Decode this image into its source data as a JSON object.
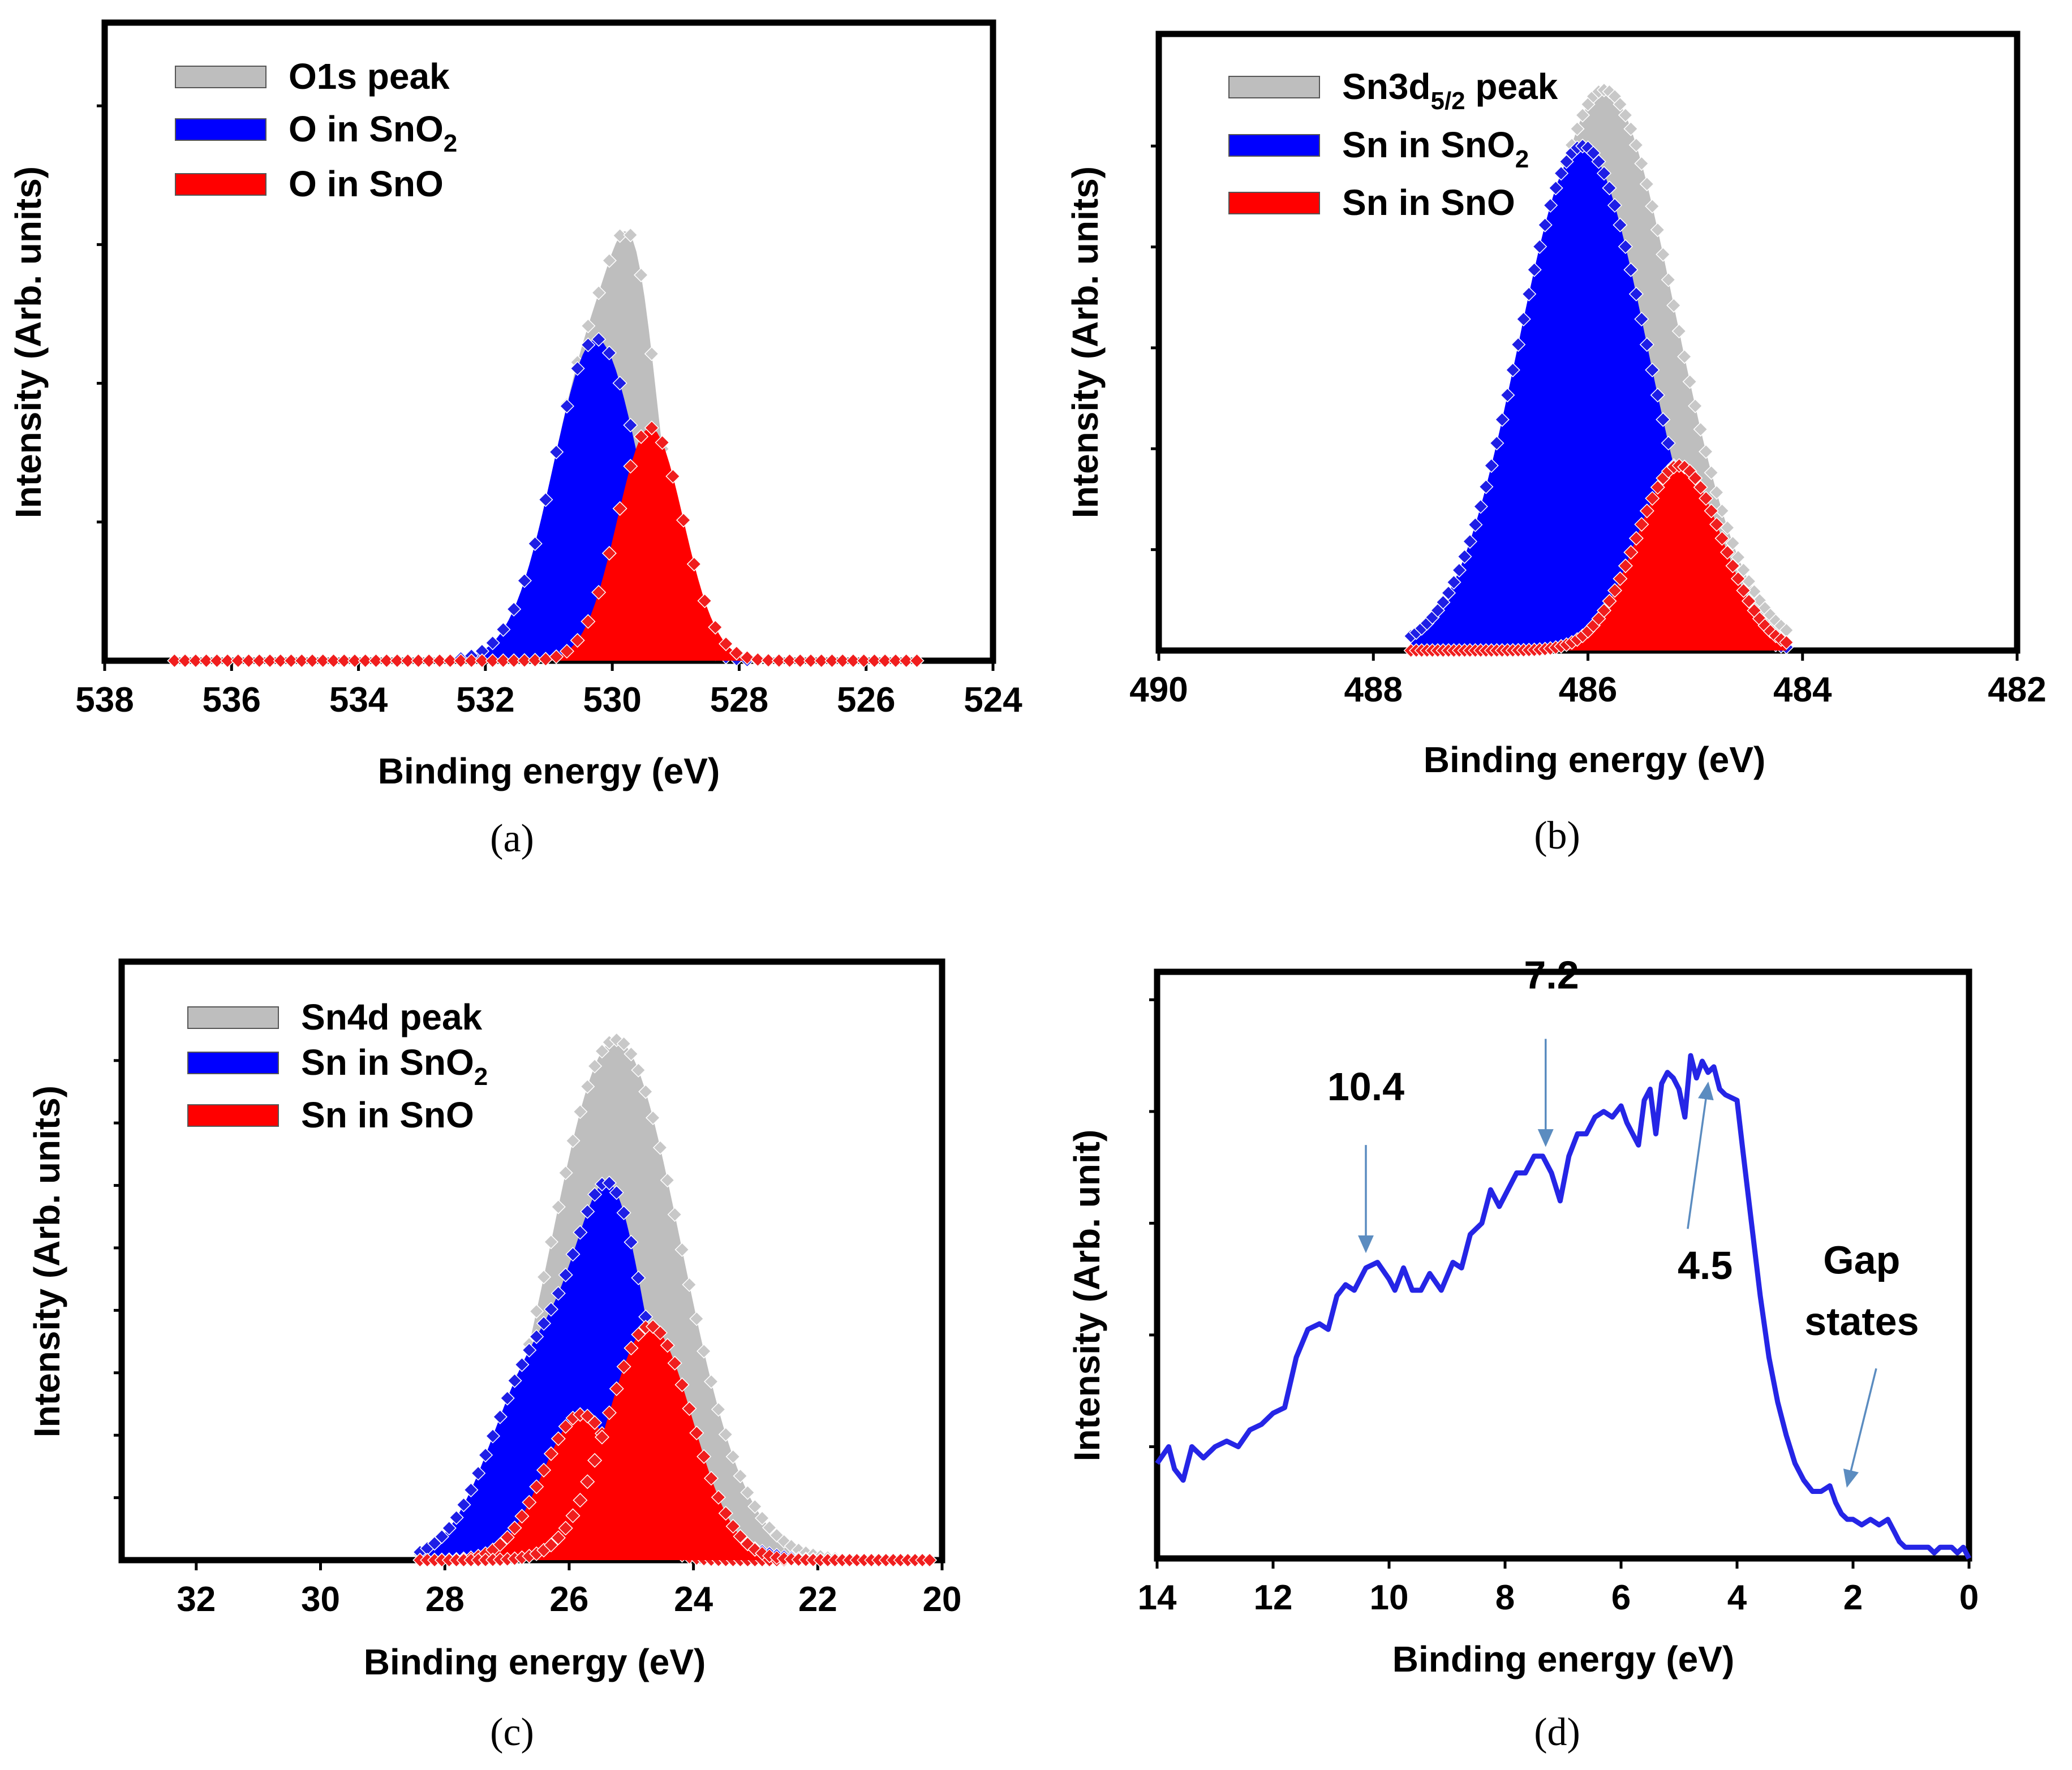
{
  "colors": {
    "total": "#BEBEBE",
    "sno2": "#0000FF",
    "sno": "#FF0000",
    "marker_total": "#C8C8C8",
    "marker_sno2": "#1E1EE6",
    "marker_sno": "#F01E1E",
    "vb_line": "#2525E6",
    "arrow": "#5B8CC0"
  },
  "chart_data": [
    {
      "id": "a",
      "type": "area",
      "caption": "(a)",
      "xlabel": "Binding energy (eV)",
      "ylabel": "Intensity (Arb. units)",
      "xlim": [
        538,
        524
      ],
      "ylim": [
        0,
        1.15
      ],
      "xticks": [
        538,
        536,
        534,
        532,
        530,
        528,
        526,
        524
      ],
      "xtick_labels": [
        "538",
        "536",
        "534",
        "532",
        "530",
        "528",
        "526",
        "524"
      ],
      "yticks": [
        0.25,
        0.5,
        0.75,
        1.0
      ],
      "x_range": [
        536.9,
        525.2
      ],
      "legend_position": "top-left",
      "legend": [
        {
          "label": "O1s peak",
          "sub": "",
          "color_key": "total"
        },
        {
          "label": "O in SnO",
          "sub": "2",
          "color_key": "sno2"
        },
        {
          "label": "O in SnO",
          "sub": "",
          "color_key": "sno"
        }
      ],
      "series": [
        {
          "name": "O1s peak",
          "color_key": "total",
          "components": [
            [
              529.6,
              0.36,
              0.36
            ],
            [
              530.25,
              0.58,
              0.68
            ]
          ]
        },
        {
          "name": "O in SnO2",
          "color_key": "sno2",
          "components": [
            [
              530.25,
              0.58,
              0.68
            ]
          ]
        },
        {
          "name": "O in SnO",
          "color_key": "sno",
          "components": [
            [
              529.4,
              0.42,
              0.52
            ]
          ]
        }
      ]
    },
    {
      "id": "b",
      "type": "area",
      "caption": "(b)",
      "xlabel": "Binding energy (eV)",
      "ylabel": "Intensity (Arb. units)",
      "xlim": [
        490,
        482
      ],
      "ylim": [
        0,
        1.1
      ],
      "xticks": [
        490,
        488,
        486,
        484,
        482
      ],
      "xtick_labels": [
        "490",
        "488",
        "486",
        "484",
        "482"
      ],
      "yticks": [
        0.18,
        0.36,
        0.54,
        0.72,
        0.9
      ],
      "x_range": [
        487.65,
        484.15
      ],
      "legend_position": "top-left",
      "legend": [
        {
          "label": "Sn3d",
          "sub": "5/2",
          "suffix": " peak",
          "color_key": "total"
        },
        {
          "label": "Sn in SnO",
          "sub": "2",
          "suffix": "",
          "color_key": "sno2"
        },
        {
          "label": "Sn in SnO",
          "sub": "",
          "suffix": "",
          "color_key": "sno"
        }
      ],
      "series": [
        {
          "name": "Sn3d5/2 peak",
          "color_key": "total",
          "components": [
            [
              485.85,
              1.0,
              0.66
            ]
          ]
        },
        {
          "name": "Sn in SnO2",
          "color_key": "sno2",
          "components": [
            [
              486.05,
              0.9,
              0.6
            ]
          ]
        },
        {
          "name": "Sn in SnO",
          "color_key": "sno",
          "components": [
            [
              485.15,
              0.33,
              0.4
            ]
          ]
        }
      ]
    },
    {
      "id": "c",
      "type": "area",
      "caption": "(c)",
      "xlabel": "Binding energy (eV)",
      "ylabel": "Intensity (Arb. units)",
      "xlim": [
        33.2,
        20
      ],
      "ylim": [
        0,
        1.15
      ],
      "xticks": [
        32,
        30,
        28,
        26,
        24,
        22,
        20
      ],
      "xtick_labels": [
        "32",
        "30",
        "28",
        "26",
        "24",
        "22",
        "20"
      ],
      "yticks": [
        0.12,
        0.24,
        0.36,
        0.48,
        0.6,
        0.72,
        0.84,
        0.96
      ],
      "x_range": [
        28.4,
        20.2
      ],
      "legend_position": "top-left",
      "legend": [
        {
          "label": "Sn4d peak",
          "sub": "",
          "color_key": "total"
        },
        {
          "label": "Sn in SnO",
          "sub": "2",
          "color_key": "sno2"
        },
        {
          "label": "Sn in SnO",
          "sub": "",
          "color_key": "sno"
        }
      ],
      "series": [
        {
          "name": "Sn4d peak",
          "color_key": "total",
          "components": [
            [
              25.25,
              1.0,
              1.05
            ]
          ]
        },
        {
          "name": "Sn in SnO2",
          "color_key": "sno2",
          "components": [
            [
              26.5,
              0.38,
              0.75
            ],
            [
              25.3,
              0.56,
              0.55
            ],
            [
              24.4,
              0.1,
              0.8
            ]
          ]
        },
        {
          "name": "Sn in SnO (1)",
          "color_key": "sno",
          "components": [
            [
              25.8,
              0.28,
              0.62
            ]
          ]
        },
        {
          "name": "Sn in SnO (2)",
          "color_key": "sno",
          "components": [
            [
              24.7,
              0.45,
              0.68
            ]
          ]
        }
      ]
    },
    {
      "id": "d",
      "type": "line",
      "caption": "(d)",
      "xlabel": "Binding energy (eV)",
      "ylabel": "Intensity (Arb. unit)",
      "xlim": [
        14,
        0
      ],
      "ylim": [
        0,
        1.05
      ],
      "xticks": [
        14,
        12,
        10,
        8,
        6,
        4,
        2,
        0
      ],
      "xtick_labels": [
        "14",
        "12",
        "10",
        "8",
        "6",
        "4",
        "2",
        "0"
      ],
      "yticks": [
        0.2,
        0.4,
        0.6,
        0.8,
        1.0
      ],
      "x": [
        14.0,
        13.8,
        13.7,
        13.55,
        13.4,
        13.2,
        13.0,
        12.8,
        12.6,
        12.4,
        12.2,
        12.0,
        11.8,
        11.6,
        11.4,
        11.2,
        11.05,
        10.9,
        10.75,
        10.6,
        10.4,
        10.2,
        10.0,
        9.9,
        9.75,
        9.6,
        9.45,
        9.3,
        9.1,
        8.9,
        8.75,
        8.6,
        8.4,
        8.25,
        8.1,
        7.95,
        7.8,
        7.65,
        7.5,
        7.35,
        7.2,
        7.05,
        6.9,
        6.75,
        6.6,
        6.45,
        6.3,
        6.15,
        6.0,
        5.9,
        5.8,
        5.7,
        5.6,
        5.5,
        5.4,
        5.3,
        5.2,
        5.1,
        5.0,
        4.9,
        4.8,
        4.7,
        4.6,
        4.5,
        4.4,
        4.3,
        4.2,
        4.0,
        3.9,
        3.75,
        3.6,
        3.45,
        3.3,
        3.15,
        3.0,
        2.85,
        2.7,
        2.55,
        2.4,
        2.3,
        2.2,
        2.1,
        2.0,
        1.85,
        1.7,
        1.55,
        1.4,
        1.3,
        1.2,
        1.1,
        1.0,
        0.9,
        0.8,
        0.7,
        0.6,
        0.5,
        0.4,
        0.3,
        0.2,
        0.1,
        0.0
      ],
      "values": [
        0.17,
        0.2,
        0.16,
        0.14,
        0.2,
        0.18,
        0.2,
        0.21,
        0.2,
        0.23,
        0.24,
        0.26,
        0.27,
        0.36,
        0.41,
        0.42,
        0.41,
        0.47,
        0.49,
        0.48,
        0.52,
        0.53,
        0.5,
        0.48,
        0.52,
        0.48,
        0.48,
        0.51,
        0.48,
        0.53,
        0.52,
        0.58,
        0.6,
        0.66,
        0.63,
        0.66,
        0.69,
        0.69,
        0.72,
        0.72,
        0.69,
        0.64,
        0.72,
        0.76,
        0.76,
        0.79,
        0.8,
        0.79,
        0.81,
        0.78,
        0.76,
        0.74,
        0.82,
        0.84,
        0.76,
        0.85,
        0.87,
        0.86,
        0.84,
        0.79,
        0.9,
        0.86,
        0.89,
        0.87,
        0.88,
        0.84,
        0.83,
        0.82,
        0.73,
        0.6,
        0.47,
        0.36,
        0.28,
        0.22,
        0.17,
        0.14,
        0.12,
        0.12,
        0.13,
        0.1,
        0.08,
        0.07,
        0.07,
        0.06,
        0.07,
        0.06,
        0.07,
        0.05,
        0.03,
        0.02,
        0.02,
        0.02,
        0.02,
        0.02,
        0.01,
        0.02,
        0.02,
        0.02,
        0.01,
        0.02,
        0.0
      ],
      "annotations": [
        {
          "text": "10.4",
          "text_x": 10.4,
          "text_y": 0.82,
          "arrow_from": [
            10.4,
            0.74
          ],
          "arrow_to": [
            10.4,
            0.55
          ]
        },
        {
          "text": "7.2",
          "text_x": 7.2,
          "text_y": 1.02,
          "arrow_from": [
            7.3,
            0.93
          ],
          "arrow_to": [
            7.3,
            0.74
          ]
        },
        {
          "text": "4.5",
          "text_x": 4.55,
          "text_y": 0.5,
          "arrow_from": [
            4.85,
            0.59
          ],
          "arrow_to": [
            4.5,
            0.85
          ]
        },
        {
          "text": "Gap",
          "text_x": 1.85,
          "text_y": 0.51,
          "arrow_from": null,
          "arrow_to": null
        },
        {
          "text": "states",
          "text_x": 1.85,
          "text_y": 0.4,
          "arrow_from": [
            1.6,
            0.34
          ],
          "arrow_to": [
            2.1,
            0.13
          ]
        }
      ]
    }
  ]
}
